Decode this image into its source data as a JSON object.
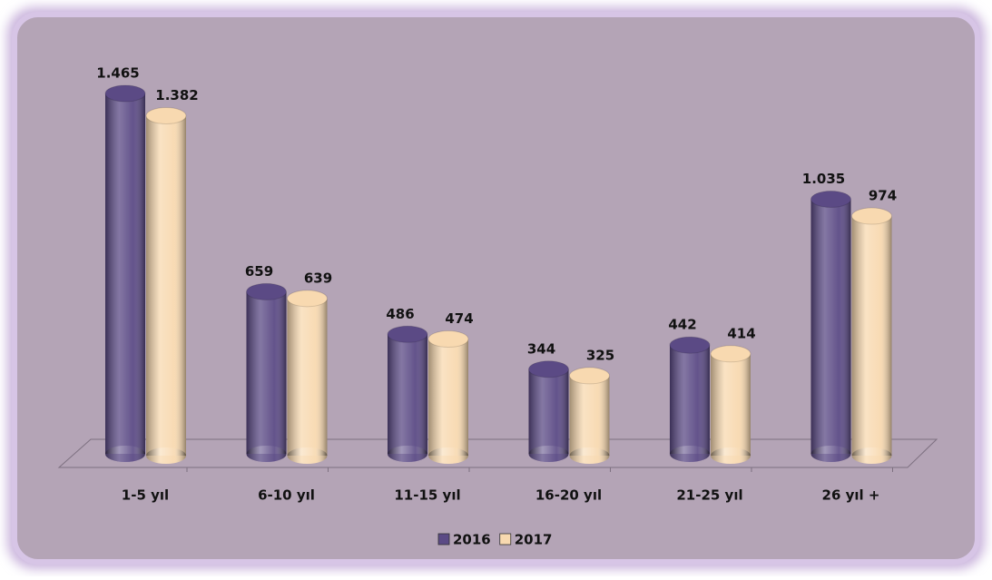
{
  "chart_data": {
    "type": "bar",
    "categories": [
      "1-5 yıl",
      "6-10 yıl",
      "11-15 yıl",
      "16-20 yıl",
      "21-25 yıl",
      "26 yıl +"
    ],
    "series": [
      {
        "name": "2016",
        "color": "#5b4a85",
        "values": [
          1465,
          659,
          486,
          344,
          442,
          1035
        ],
        "value_labels": [
          "1.465",
          "659",
          "486",
          "344",
          "442",
          "1.035"
        ]
      },
      {
        "name": "2017",
        "color": "#f8d9b0",
        "values": [
          1382,
          639,
          474,
          325,
          414,
          974
        ],
        "value_labels": [
          "1.382",
          "639",
          "474",
          "325",
          "414",
          "974"
        ]
      }
    ],
    "legend": "bottom"
  }
}
